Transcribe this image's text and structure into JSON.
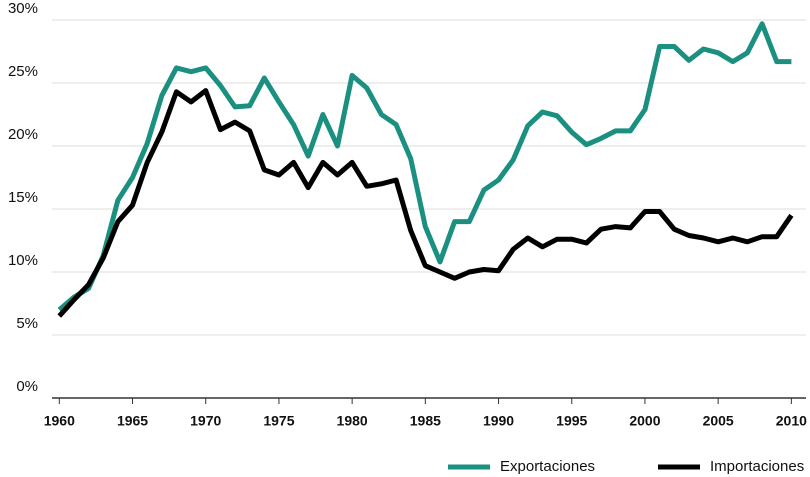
{
  "chart_data": {
    "type": "line",
    "x": [
      1960,
      1961,
      1962,
      1963,
      1964,
      1965,
      1966,
      1967,
      1968,
      1969,
      1970,
      1971,
      1972,
      1973,
      1974,
      1975,
      1976,
      1977,
      1978,
      1979,
      1980,
      1981,
      1982,
      1983,
      1984,
      1985,
      1986,
      1987,
      1988,
      1989,
      1990,
      1991,
      1992,
      1993,
      1994,
      1995,
      1996,
      1997,
      1998,
      1999,
      2000,
      2001,
      2002,
      2003,
      2004,
      2005,
      2006,
      2007,
      2008,
      2009,
      2010
    ],
    "series": [
      {
        "name": "Exportaciones",
        "color": "#1b9080",
        "values": [
          7.0,
          8.0,
          8.7,
          11.3,
          15.7,
          17.5,
          20.2,
          24.0,
          26.2,
          25.9,
          26.2,
          24.8,
          23.1,
          23.2,
          25.4,
          23.5,
          21.7,
          19.2,
          22.5,
          20.0,
          25.6,
          24.6,
          22.5,
          21.7,
          19.0,
          13.6,
          10.8,
          14.0,
          14.0,
          16.5,
          17.3,
          18.9,
          21.6,
          22.7,
          22.4,
          21.1,
          20.1,
          20.6,
          21.2,
          21.2,
          22.9,
          27.9,
          27.9,
          26.8,
          27.7,
          27.4,
          26.7,
          27.4,
          29.7,
          26.7,
          26.7
        ]
      },
      {
        "name": "Importaciones",
        "color": "#000000",
        "values": [
          6.5,
          7.8,
          9.0,
          11.1,
          14.0,
          15.3,
          18.7,
          21.1,
          24.3,
          23.5,
          24.4,
          21.3,
          21.9,
          21.2,
          18.1,
          17.7,
          18.7,
          16.7,
          18.7,
          17.7,
          18.7,
          16.8,
          17.0,
          17.3,
          13.3,
          10.5,
          10.0,
          9.5,
          10.0,
          10.2,
          10.1,
          11.8,
          12.7,
          12.0,
          12.6,
          12.6,
          12.3,
          13.4,
          13.6,
          13.5,
          14.8,
          14.8,
          13.4,
          12.9,
          12.7,
          12.4,
          12.7,
          12.4,
          12.8,
          12.8,
          14.5
        ]
      }
    ],
    "xlim": [
      1959.5,
      2011
    ],
    "xticks": [
      1960,
      1965,
      1970,
      1975,
      1980,
      1985,
      1990,
      1995,
      2000,
      2005,
      2010
    ],
    "ylim": [
      0,
      30
    ],
    "yticks": [
      {
        "value": 0,
        "label": "0%"
      },
      {
        "value": 5,
        "label": "5%"
      },
      {
        "value": 10,
        "label": "10%"
      },
      {
        "value": 15,
        "label": "15%"
      },
      {
        "value": 20,
        "label": "20%"
      },
      {
        "value": 25,
        "label": "25%"
      },
      {
        "value": 30,
        "label": "30%"
      }
    ],
    "grid": true
  }
}
